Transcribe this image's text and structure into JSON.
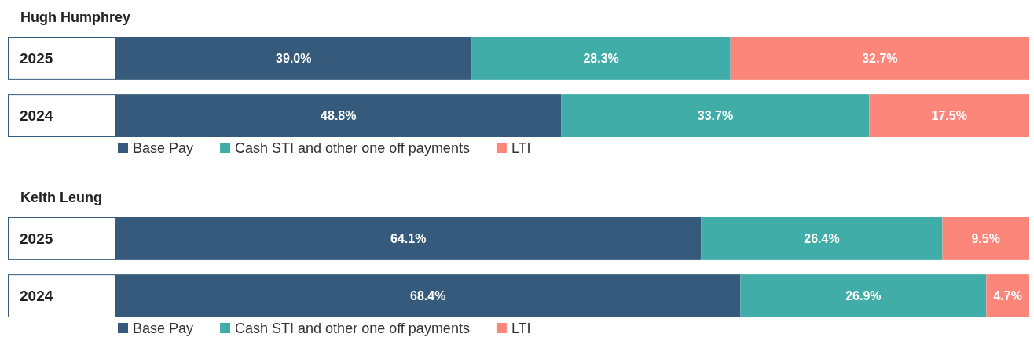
{
  "chart_data": [
    {
      "type": "bar",
      "orientation": "horizontal",
      "stacked": true,
      "title": "Hugh Humphrey",
      "categories": [
        "2025",
        "2024"
      ],
      "xlim": [
        0,
        100
      ],
      "legend": "bottom",
      "series": [
        {
          "name": "Base Pay",
          "color": "#365a7c",
          "values": [
            39.0,
            48.8
          ],
          "value_labels": [
            "39.0%",
            "48.8%"
          ]
        },
        {
          "name": "Cash STI and other one off payments",
          "color": "#40ada8",
          "values": [
            28.3,
            33.7
          ],
          "value_labels": [
            "28.3%",
            "33.7%"
          ]
        },
        {
          "name": "LTI",
          "color": "#fd867a",
          "values": [
            32.7,
            17.5
          ],
          "value_labels": [
            "32.7%",
            "17.5%"
          ]
        }
      ]
    },
    {
      "type": "bar",
      "orientation": "horizontal",
      "stacked": true,
      "title": "Keith Leung",
      "categories": [
        "2025",
        "2024"
      ],
      "xlim": [
        0,
        100
      ],
      "legend": "bottom",
      "series": [
        {
          "name": "Base Pay",
          "color": "#365a7c",
          "values": [
            64.1,
            68.4
          ],
          "value_labels": [
            "64.1%",
            "68.4%"
          ]
        },
        {
          "name": "Cash STI and other one off payments",
          "color": "#40ada8",
          "values": [
            26.4,
            26.9
          ],
          "value_labels": [
            "26.4%",
            "26.9%"
          ]
        },
        {
          "name": "LTI",
          "color": "#fd867a",
          "values": [
            9.5,
            4.7
          ],
          "value_labels": [
            "9.5%",
            "4.7%"
          ]
        }
      ]
    }
  ]
}
